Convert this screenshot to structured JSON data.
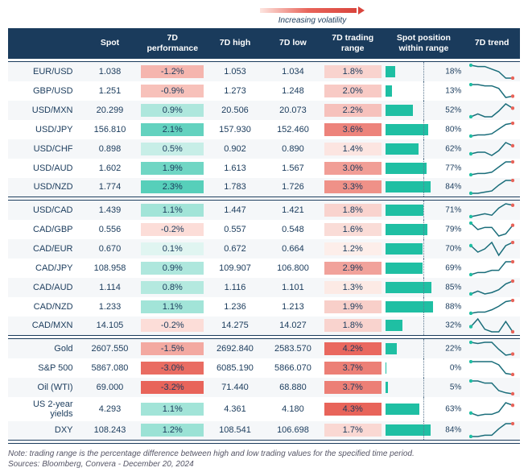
{
  "legend": {
    "label": "Increasing volatility"
  },
  "headers": {
    "instrument": "",
    "spot": "Spot",
    "perf": "7D performance",
    "high": "7D high",
    "low": "7D low",
    "range": "7D trading range",
    "pos": "Spot position within range",
    "trend": "7D trend"
  },
  "colors": {
    "header_bg": "#1a3b5c",
    "header_fg": "#ffffff",
    "bar_fill": "#1fbfa3",
    "spark_line": "#1a6d7a",
    "spark_start": "#1fbfa3",
    "spark_end": "#e8645a",
    "perf_pos_max": "#1fbfa3",
    "perf_pos_min": "#e6f7f3",
    "perf_neg_max": "#e8645a",
    "perf_neg_min": "#fde5e0",
    "range_min": "#fdeeea",
    "range_max": "#e8645a"
  },
  "scales": {
    "perf_abs_max": 3.2,
    "range_min": 1.2,
    "range_max": 4.3
  },
  "groups": [
    {
      "rows": [
        {
          "inst": "EUR/USD",
          "spot": "1.038",
          "perf": -1.2,
          "high": "1.053",
          "low": "1.034",
          "range": 1.8,
          "pos": 18,
          "spark": [
            18,
            17,
            17,
            15,
            13,
            8,
            8
          ]
        },
        {
          "inst": "GBP/USD",
          "spot": "1.251",
          "perf": -0.9,
          "high": "1.273",
          "low": "1.248",
          "range": 2.0,
          "pos": 13,
          "spark": [
            17,
            17,
            16,
            16,
            14,
            7,
            8
          ]
        },
        {
          "inst": "USD/MXN",
          "spot": "20.299",
          "perf": 0.9,
          "high": "20.506",
          "low": "20.073",
          "range": 2.2,
          "pos": 52,
          "spark": [
            6,
            8,
            6,
            6,
            10,
            15,
            12
          ]
        },
        {
          "inst": "USD/JPY",
          "spot": "156.810",
          "perf": 2.1,
          "high": "157.930",
          "low": "152.460",
          "range": 3.6,
          "pos": 80,
          "spark": [
            4,
            5,
            5,
            6,
            10,
            14,
            15
          ]
        },
        {
          "inst": "USD/CHF",
          "spot": "0.898",
          "perf": 0.5,
          "high": "0.902",
          "low": "0.890",
          "range": 1.4,
          "pos": 62,
          "spark": [
            8,
            9,
            9,
            7,
            10,
            15,
            13
          ]
        },
        {
          "inst": "USD/AUD",
          "spot": "1.602",
          "perf": 1.9,
          "high": "1.613",
          "low": "1.567",
          "range": 3.0,
          "pos": 77,
          "spark": [
            4,
            5,
            5,
            6,
            10,
            14,
            14
          ]
        },
        {
          "inst": "USD/NZD",
          "spot": "1.774",
          "perf": 2.3,
          "high": "1.783",
          "low": "1.726",
          "range": 3.3,
          "pos": 84,
          "spark": [
            4,
            4,
            5,
            6,
            11,
            15,
            15
          ]
        }
      ]
    },
    {
      "rows": [
        {
          "inst": "USD/CAD",
          "spot": "1.439",
          "perf": 1.1,
          "high": "1.447",
          "low": "1.421",
          "range": 1.8,
          "pos": 71,
          "spark": [
            5,
            6,
            7,
            6,
            11,
            14,
            13
          ]
        },
        {
          "inst": "CAD/GBP",
          "spot": "0.556",
          "perf": -0.2,
          "high": "0.557",
          "low": "0.548",
          "range": 1.6,
          "pos": 79,
          "spark": [
            15,
            12,
            13,
            13,
            9,
            10,
            14
          ]
        },
        {
          "inst": "CAD/EUR",
          "spot": "0.670",
          "perf": 0.1,
          "high": "0.672",
          "low": "0.664",
          "range": 1.2,
          "pos": 70,
          "spark": [
            13,
            11,
            12,
            14,
            10,
            13,
            14
          ]
        },
        {
          "inst": "CAD/JPY",
          "spot": "108.958",
          "perf": 0.9,
          "high": "109.907",
          "low": "106.800",
          "range": 2.9,
          "pos": 69,
          "spark": [
            7,
            8,
            8,
            9,
            9,
            13,
            13
          ]
        },
        {
          "inst": "CAD/AUD",
          "spot": "1.114",
          "perf": 0.8,
          "high": "1.116",
          "low": "1.101",
          "range": 1.3,
          "pos": 85,
          "spark": [
            6,
            8,
            6,
            7,
            9,
            13,
            15
          ]
        },
        {
          "inst": "CAD/NZD",
          "spot": "1.233",
          "perf": 1.1,
          "high": "1.236",
          "low": "1.213",
          "range": 1.9,
          "pos": 88,
          "spark": [
            5,
            6,
            6,
            8,
            11,
            15,
            16
          ]
        },
        {
          "inst": "CAD/MXN",
          "spot": "14.105",
          "perf": -0.2,
          "high": "14.275",
          "low": "14.027",
          "range": 1.8,
          "pos": 32,
          "spark": [
            10,
            13,
            9,
            8,
            8,
            12,
            8
          ]
        }
      ]
    },
    {
      "rows": [
        {
          "inst": "Gold",
          "spot": "2607.550",
          "perf": -1.5,
          "high": "2692.840",
          "low": "2583.570",
          "range": 4.2,
          "pos": 22,
          "spark": [
            16,
            15,
            16,
            16,
            10,
            5,
            6
          ]
        },
        {
          "inst": "S&P 500",
          "spot": "5867.080",
          "perf": -3.0,
          "high": "6085.190",
          "low": "5866.070",
          "range": 3.7,
          "pos": 0,
          "spark": [
            17,
            17,
            17,
            17,
            14,
            6,
            5
          ]
        },
        {
          "inst": "Oil (WTI)",
          "spot": "69.000",
          "perf": -3.2,
          "high": "71.440",
          "low": "68.880",
          "range": 3.7,
          "pos": 5,
          "spark": [
            17,
            17,
            15,
            15,
            8,
            6,
            5
          ]
        },
        {
          "inst": "US 2-year yields",
          "spot": "4.293",
          "perf": 1.1,
          "high": "4.361",
          "low": "4.180",
          "range": 4.3,
          "pos": 63,
          "spark": [
            7,
            5,
            6,
            6,
            8,
            15,
            13
          ]
        },
        {
          "inst": "DXY",
          "spot": "108.243",
          "perf": 1.2,
          "high": "108.541",
          "low": "106.698",
          "range": 1.7,
          "pos": 84,
          "spark": [
            5,
            5,
            6,
            6,
            11,
            15,
            15
          ]
        }
      ]
    }
  ],
  "footnote": {
    "line1": "Note: trading range is the percentage difference between high and low trading values for the specified time period.",
    "line2": "Sources: Bloomberg, Convera - December 20, 2024"
  }
}
